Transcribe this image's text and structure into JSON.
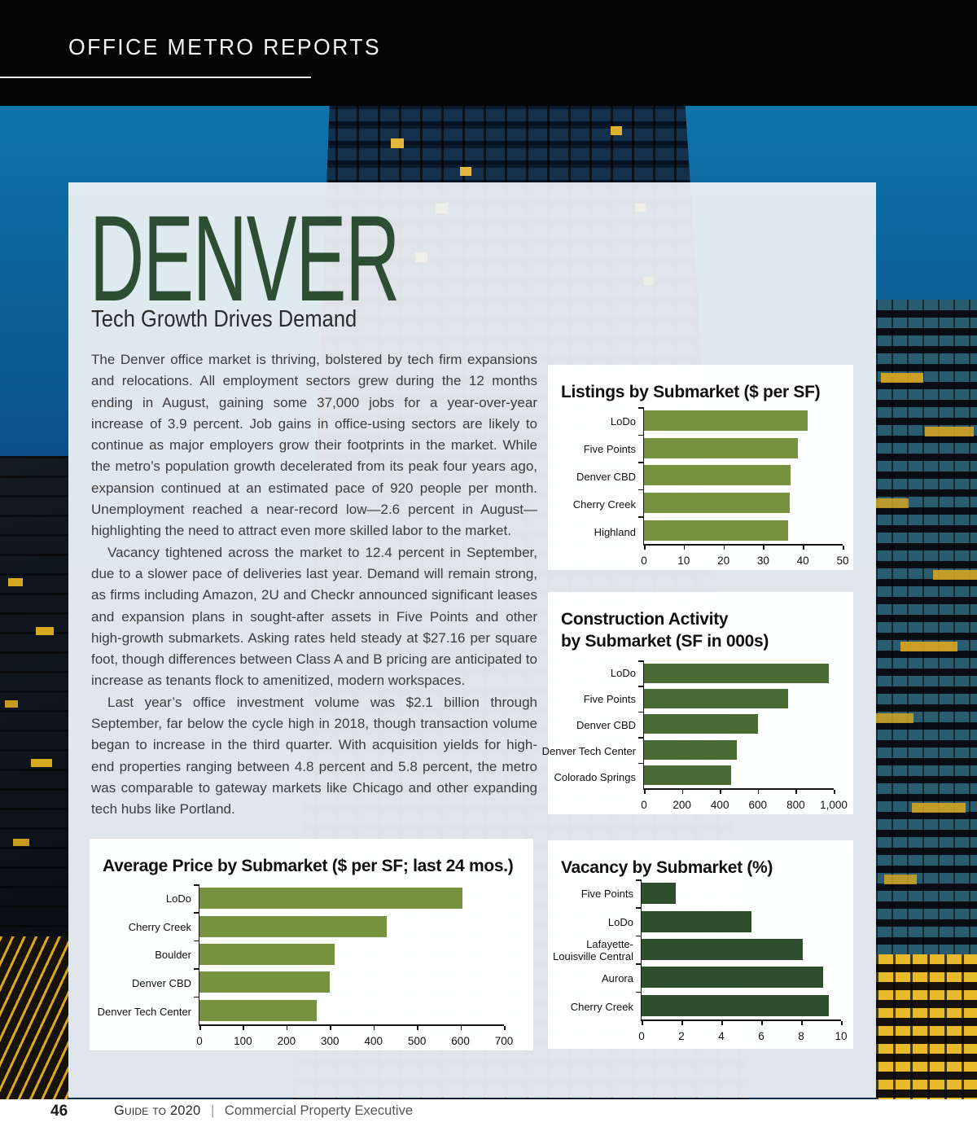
{
  "header": {
    "title": "OFFICE METRO REPORTS"
  },
  "article": {
    "city": "DENVER",
    "subtitle": "Tech Growth Drives Demand",
    "paragraphs": [
      "The Denver office market is thriving, bolstered by tech firm expansions and relocations. All employment sectors grew during the 12 months ending in August, gaining some 37,000 jobs for a year-over-year increase of 3.9 percent. Job gains in office-using sectors are likely to continue as major employers grow their footprints in the market. While the metro’s population growth decelerated from its peak four years ago, expansion continued at an estimated pace of 920 people per month. Unemployment reached a near-record low—2.6 percent in August—highlighting the need to attract even more skilled labor to the market.",
      "Vacancy tightened across the market to 12.4 percent in September, due to a slower pace of deliveries last year. Demand will remain strong, as firms including Amazon, 2U and Checkr announced significant leases and expansion plans in sought-after assets in Five Points and other high-growth submarkets. Asking rates held steady at $27.16 per square foot, though differences between Class A and B pricing are anticipated to increase as tenants flock to amenitized, modern workspaces.",
      "Last year’s office investment volume was $2.1 billion through September, far below the cycle high in 2018, though transaction volume began to increase in the third quarter. With acquisition yields for high-end properties ranging between 4.8 percent and 5.8 percent, the metro was comparable to gateway markets like Chicago and other expanding tech hubs like Portland."
    ]
  },
  "colors": {
    "title_green": "#2D4E33",
    "olive_bar": "#76923C",
    "forest_bar": "#4A6B35",
    "dark_green_bar": "#2F4E2D"
  },
  "chart_data": [
    {
      "type": "bar",
      "orientation": "horizontal",
      "title_lines": [
        "Listings by Submarket ($ per SF)"
      ],
      "categories": [
        "LoDo",
        "Five Points",
        "Denver CBD",
        "Cherry Creek",
        "Highland"
      ],
      "values": [
        41.2,
        38.8,
        36.8,
        36.7,
        36.2
      ],
      "xlim": [
        0,
        50
      ],
      "xticks": [
        "0",
        "10",
        "20",
        "30",
        "40",
        "50"
      ],
      "bar_color": "#76923C",
      "grid": false
    },
    {
      "type": "bar",
      "orientation": "horizontal",
      "title_lines": [
        "Construction Activity",
        "by Submarket (SF in 000s)"
      ],
      "categories": [
        "LoDo",
        "Five Points",
        "Denver CBD",
        "Denver Tech Center",
        "Colorado Springs"
      ],
      "values": [
        975,
        760,
        600,
        490,
        460
      ],
      "xlim": [
        0,
        1000
      ],
      "xticks": [
        "0",
        "200",
        "400",
        "600",
        "800",
        "1,000"
      ],
      "bar_color": "#4A6B35",
      "grid": false
    },
    {
      "type": "bar",
      "orientation": "horizontal",
      "title_lines": [
        "Average Price by Submarket ($ per SF; last 24 mos.)"
      ],
      "categories": [
        "LoDo",
        "Cherry Creek",
        "Boulder",
        "Denver CBD",
        "Denver Tech Center"
      ],
      "values": [
        605,
        430,
        310,
        300,
        270
      ],
      "xlim": [
        0,
        700
      ],
      "xticks": [
        "0",
        "100",
        "200",
        "300",
        "400",
        "500",
        "600",
        "700"
      ],
      "bar_color": "#76923C",
      "grid": false
    },
    {
      "type": "bar",
      "orientation": "horizontal",
      "title_lines": [
        "Vacancy by Submarket (%)"
      ],
      "categories": [
        "Five Points",
        "LoDo",
        "Lafayette-\nLouisville Central",
        "Aurora",
        "Cherry Creek"
      ],
      "values": [
        1.7,
        5.5,
        8.1,
        9.1,
        9.4
      ],
      "xlim": [
        0,
        10
      ],
      "xticks": [
        "0",
        "2",
        "4",
        "6",
        "8",
        "10"
      ],
      "bar_color": "#2F4E2D",
      "grid": false
    }
  ],
  "footer": {
    "page_number": "46",
    "publication": "Guide to 2020",
    "separator": "|",
    "publisher": "Commercial Property Executive"
  }
}
